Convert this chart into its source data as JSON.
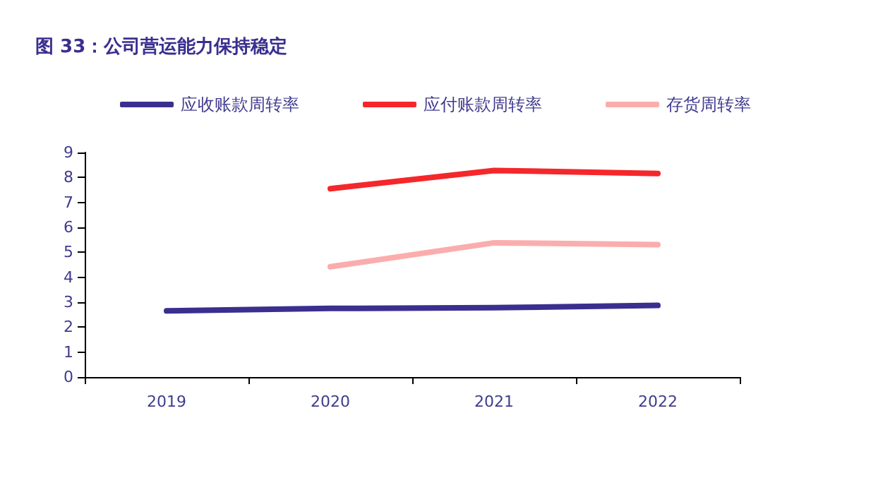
{
  "chart_data": {
    "type": "line",
    "title": "图 33：公司营运能力保持稳定",
    "categories": [
      "2019",
      "2020",
      "2021",
      "2022"
    ],
    "series": [
      {
        "name": "应收账款周转率",
        "color": "#3a2f8f",
        "values": [
          2.65,
          2.75,
          2.78,
          2.87
        ]
      },
      {
        "name": "应付账款周转率",
        "color": "#f5272b",
        "values": [
          null,
          7.55,
          8.28,
          8.16
        ]
      },
      {
        "name": "存货周转率",
        "color": "#fbadad",
        "values": [
          null,
          4.42,
          5.38,
          5.31
        ]
      }
    ],
    "ylim": [
      0,
      9
    ],
    "yticks": [
      0,
      1,
      2,
      3,
      4,
      5,
      6,
      7,
      8,
      9
    ],
    "grid": false,
    "legend": "top",
    "marker": "none",
    "line_style": "solid"
  }
}
